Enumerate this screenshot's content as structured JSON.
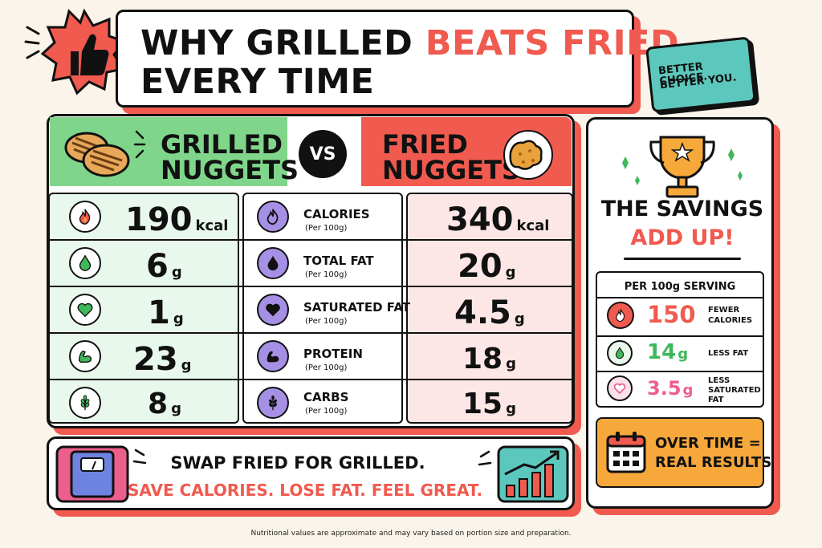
{
  "title": {
    "line1_black": "WHY GRILLED",
    "line1_red": "BEATS FRIED",
    "line2": "EVERY TIME"
  },
  "badge": {
    "line1": "BETTER CHOICE.",
    "line2": "BETTER YOU."
  },
  "vs": "VS",
  "grilled": {
    "line1": "GRILLED",
    "line2": "NUGGETS"
  },
  "fried": {
    "line1": "FRIED",
    "line2": "NUGGETS"
  },
  "rows": [
    {
      "name": "CALORIES",
      "sub": "(Per 100g)",
      "grilled": "190",
      "grilled_unit": "kcal",
      "fried": "340",
      "fried_unit": "kcal",
      "icon": "flame-icon"
    },
    {
      "name": "TOTAL FAT",
      "sub": "(Per 100g)",
      "grilled": "6",
      "grilled_unit": "g",
      "fried": "20",
      "fried_unit": "g",
      "icon": "droplet-icon"
    },
    {
      "name": "SATURATED FAT",
      "sub": "(Per 100g)",
      "grilled": "1",
      "grilled_unit": "g",
      "fried": "4.5",
      "fried_unit": "g",
      "icon": "heart-icon"
    },
    {
      "name": "PROTEIN",
      "sub": "(Per 100g)",
      "grilled": "23",
      "grilled_unit": "g",
      "fried": "18",
      "fried_unit": "g",
      "icon": "muscle-icon"
    },
    {
      "name": "CARBS",
      "sub": "(Per 100g)",
      "grilled": "8",
      "grilled_unit": "g",
      "fried": "15",
      "fried_unit": "g",
      "icon": "wheat-icon"
    }
  ],
  "savings": {
    "heading1": "THE SAVINGS",
    "heading2": "ADD UP!",
    "table_title": "PER 100g SERVING",
    "items": [
      {
        "value": "150",
        "unit": "",
        "label1": "FEWER",
        "label2": "CALORIES",
        "label3": "",
        "color": "#f05a4f",
        "icon": "flame-icon"
      },
      {
        "value": "14",
        "unit": "g",
        "label1": "LESS FAT",
        "label2": "",
        "label3": "",
        "color": "#3fb85a",
        "icon": "droplet-icon"
      },
      {
        "value": "3.5",
        "unit": "g",
        "label1": "LESS",
        "label2": "SATURATED",
        "label3": "FAT",
        "color": "#ec5f8a",
        "icon": "heart-icon"
      }
    ],
    "over_time_1": "OVER TIME =",
    "over_time_2": "REAL RESULTS"
  },
  "bottom": {
    "line1": "SWAP FRIED FOR GRILLED.",
    "line2": "SAVE CALORIES. LOSE FAT. FEEL GREAT."
  },
  "footnote": "Nutritional values are approximate and may vary based on portion size and preparation.",
  "colors": {
    "accent_red": "#f05a4f",
    "green": "#7fd68a",
    "teal": "#5cc8bd",
    "purple": "#a690e6",
    "orange": "#f6a83a"
  }
}
